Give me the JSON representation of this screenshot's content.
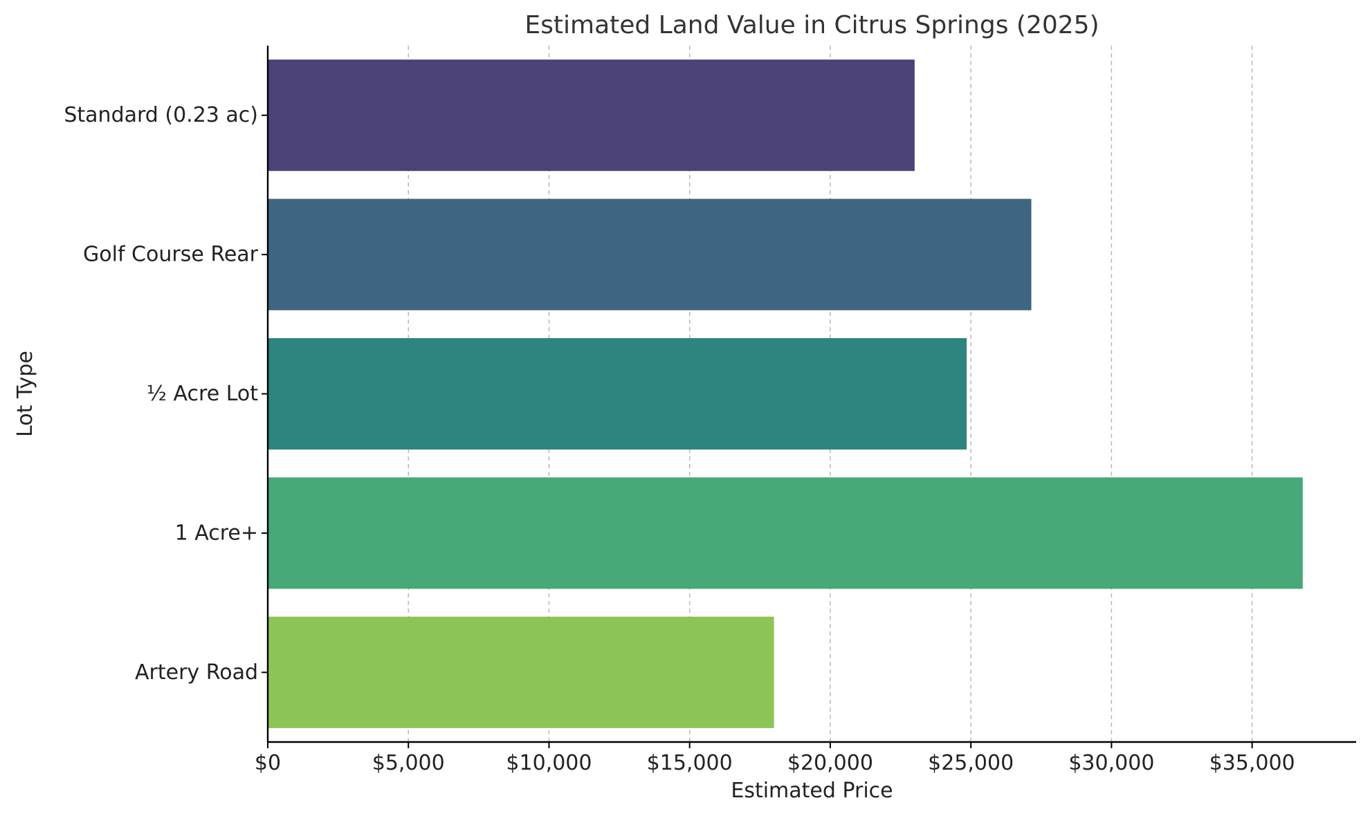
{
  "chart_data": {
    "type": "bar",
    "orientation": "horizontal",
    "title": "Estimated Land Value in Citrus Springs (2025)",
    "xlabel": "Estimated Price",
    "ylabel": "Lot Type",
    "categories": [
      "Standard (0.23 ac)",
      "Golf Course Rear",
      "½ Acre Lot",
      "1 Acre+",
      "Artery Road"
    ],
    "values": [
      23000,
      27150,
      24850,
      36800,
      18000
    ],
    "colors": [
      "#4b4277",
      "#3e6680",
      "#2e847f",
      "#47a878",
      "#8dc456"
    ],
    "xlim": [
      0,
      38700
    ],
    "xticks": [
      0,
      5000,
      10000,
      15000,
      20000,
      25000,
      30000,
      35000
    ],
    "xtick_labels": [
      "$0",
      "$5,000",
      "$10,000",
      "$15,000",
      "$20,000",
      "$25,000",
      "$30,000",
      "$35,000"
    ],
    "grid": "vertical dashed",
    "legend": "none"
  }
}
